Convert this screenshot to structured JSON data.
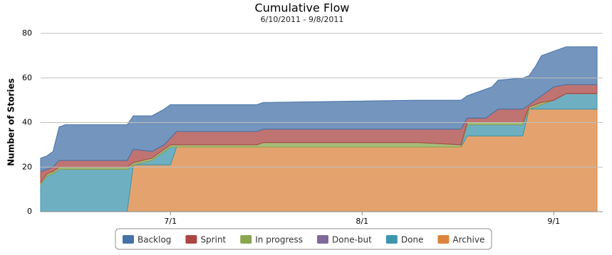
{
  "chart_data": {
    "type": "stacked-area",
    "title": "Cumulative Flow",
    "subtitle": "6/10/2011 - 9/8/2011",
    "y_label": "Number of Stories",
    "x": [
      "6/10",
      "6/11",
      "6/12",
      "6/13",
      "6/14",
      "6/24",
      "6/25",
      "6/28",
      "6/30",
      "7/1",
      "7/2",
      "7/15",
      "7/16",
      "8/10",
      "8/17",
      "8/18",
      "8/21",
      "8/22",
      "8/23",
      "8/27",
      "8/28",
      "8/29",
      "8/30",
      "9/1",
      "9/3",
      "9/8"
    ],
    "xlim": [
      "6/10",
      "9/8"
    ],
    "xticks": [
      "7/1",
      "8/1",
      "9/1"
    ],
    "ylim": [
      0,
      80
    ],
    "yticks": [
      0,
      20,
      40,
      60,
      80
    ],
    "grid": true,
    "series": [
      {
        "name": "Backlog",
        "color": "#4572a7",
        "values": [
          6,
          6,
          7,
          15,
          16,
          16,
          15,
          16,
          16,
          15,
          12,
          12,
          12,
          13,
          13,
          10,
          13,
          12,
          13,
          14,
          13,
          15,
          18,
          16,
          17,
          17
        ]
      },
      {
        "name": "Sprint",
        "color": "#aa4643",
        "values": [
          5,
          2,
          2,
          3,
          3,
          3,
          6,
          3,
          2,
          3,
          6,
          6,
          6,
          6,
          7,
          2,
          2,
          4,
          6,
          6,
          1,
          2,
          3,
          6,
          4,
          4
        ]
      },
      {
        "name": "In progress",
        "color": "#89a54e",
        "values": [
          1,
          1,
          1,
          1,
          1,
          1,
          1,
          1,
          1,
          1,
          1,
          1,
          2,
          2,
          1,
          1,
          1,
          1,
          1,
          1,
          1,
          1,
          1,
          0,
          0,
          0
        ]
      },
      {
        "name": "Done-but",
        "color": "#80699b",
        "values": [
          0,
          0,
          0,
          0,
          0,
          0,
          0,
          0,
          0,
          0,
          0,
          0,
          0,
          0,
          0,
          0,
          0,
          0,
          0,
          0,
          0,
          0,
          0,
          0,
          0,
          0
        ]
      },
      {
        "name": "Done",
        "color": "#3d96ae",
        "values": [
          12,
          16,
          17,
          19,
          19,
          19,
          0,
          2,
          6,
          8,
          0,
          0,
          0,
          0,
          0,
          5,
          5,
          5,
          5,
          5,
          0,
          1,
          2,
          4,
          7,
          7
        ]
      },
      {
        "name": "Archive",
        "color": "#db843d",
        "values": [
          0,
          0,
          0,
          0,
          0,
          0,
          21,
          21,
          21,
          21,
          29,
          29,
          29,
          29,
          29,
          34,
          34,
          34,
          34,
          34,
          46,
          46,
          46,
          46,
          46,
          46
        ]
      }
    ]
  }
}
